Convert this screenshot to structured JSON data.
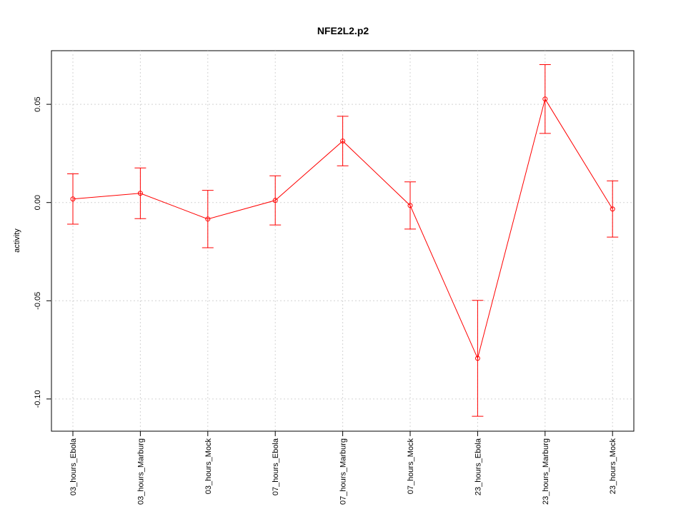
{
  "chart_data": {
    "type": "line",
    "title": "NFE2L2.p2",
    "y_label": "activity",
    "categories": [
      "03_hours_Ebola",
      "03_hours_Marburg",
      "03_hours_Mock",
      "07_hours_Ebola",
      "07_hours_Marburg",
      "07_hours_Mock",
      "23_hours_Ebola",
      "23_hours_Marburg",
      "23_hours_Mock"
    ],
    "values": [
      0.0018,
      0.0047,
      -0.0084,
      0.0011,
      0.0313,
      -0.0015,
      -0.0793,
      0.0527,
      -0.0033
    ],
    "errors": [
      0.0128,
      0.0129,
      0.0146,
      0.0125,
      0.0126,
      0.012,
      0.0295,
      0.0175,
      0.0143
    ],
    "color": "#ff0000",
    "ylim": [
      -0.1164,
      0.0773
    ],
    "yticks": [
      {
        "value": -0.1,
        "label": "-0.10"
      },
      -0.05,
      {
        "value": 0,
        "label": "0.00"
      },
      0.05
    ],
    "grid": true
  }
}
